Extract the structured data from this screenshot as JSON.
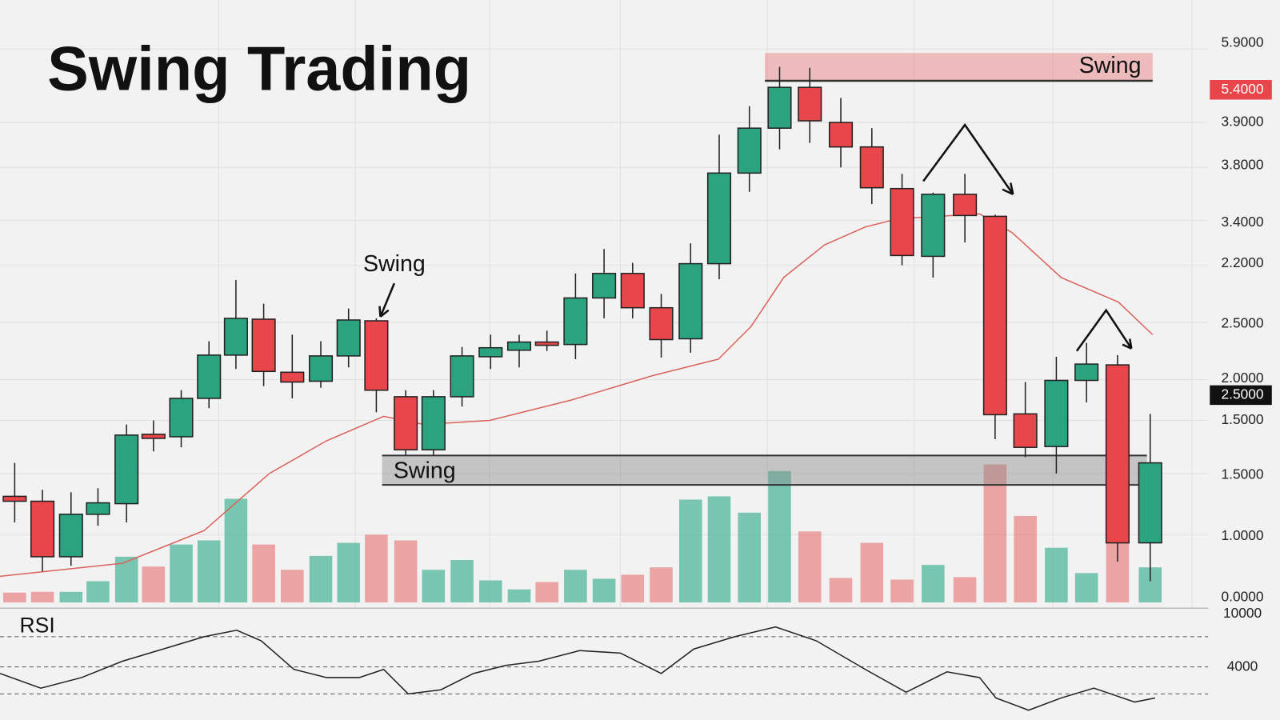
{
  "title": "Swing Trading",
  "annotations": [
    "Swing",
    "Swing",
    "Swing"
  ],
  "rsi_label": "RSI",
  "price_axis_labels": [
    "5.9000",
    "5.4000",
    "3.9000",
    "3.8000",
    "3.4000",
    "2.2000",
    "2.5000",
    "2.0000",
    "2.5000",
    "1.5000",
    "1.5000",
    "1.0000",
    "0.0000"
  ],
  "rsi_axis_labels": [
    "10000",
    "4000"
  ]
}
